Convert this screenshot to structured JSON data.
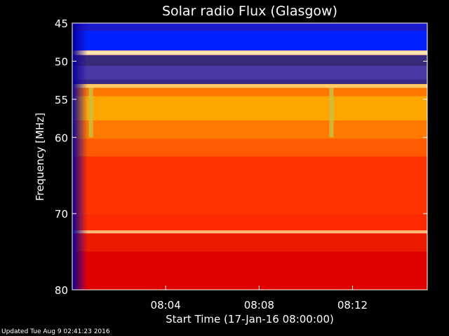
{
  "chart_data": {
    "type": "heatmap",
    "title": "Solar radio Flux (Glasgow)",
    "xlabel": "Start Time (17-Jan-16 08:00:00)",
    "ylabel": "Frequency [MHz]",
    "x_unit": "minutes after 08:00:00",
    "xlim": [
      0,
      15.2
    ],
    "ylim": [
      45,
      80
    ],
    "y_ticks": [
      {
        "value": 45,
        "label": "45"
      },
      {
        "value": 50,
        "label": "50"
      },
      {
        "value": 55,
        "label": "55"
      },
      {
        "value": 60,
        "label": "60"
      },
      {
        "value": 70,
        "label": "70"
      },
      {
        "value": 80,
        "label": "80"
      }
    ],
    "x_ticks": [
      {
        "value": 4,
        "label": "08:04"
      },
      {
        "value": 8,
        "label": "08:08"
      },
      {
        "value": 12,
        "label": "08:12"
      }
    ],
    "colormap": [
      "#0000ff",
      "#5a3aa8",
      "#ff0000",
      "#ffa500",
      "#ffffff"
    ],
    "bands": [
      {
        "from": 45.0,
        "to": 46.0,
        "color": "#1a1acc"
      },
      {
        "from": 46.0,
        "to": 48.6,
        "color": "#0022ff"
      },
      {
        "from": 48.6,
        "to": 49.2,
        "color": "#ffe2b0"
      },
      {
        "from": 49.2,
        "to": 50.6,
        "color": "#3a2a7a"
      },
      {
        "from": 50.6,
        "to": 52.4,
        "color": "#4a3aa6"
      },
      {
        "from": 52.4,
        "to": 53.0,
        "color": "#3a2a88"
      },
      {
        "from": 53.0,
        "to": 53.5,
        "color": "#ffcc66"
      },
      {
        "from": 53.5,
        "to": 54.6,
        "color": "#ff7700"
      },
      {
        "from": 54.6,
        "to": 57.8,
        "color": "#ffa500"
      },
      {
        "from": 57.8,
        "to": 60.2,
        "color": "#ff7a00"
      },
      {
        "from": 60.2,
        "to": 62.5,
        "color": "#ff5a00"
      },
      {
        "from": 62.5,
        "to": 70.2,
        "color": "#ff3300"
      },
      {
        "from": 70.2,
        "to": 72.2,
        "color": "#ff2a00"
      },
      {
        "from": 72.2,
        "to": 72.6,
        "color": "#ffbb77"
      },
      {
        "from": 72.6,
        "to": 75.0,
        "color": "#ee1a00"
      },
      {
        "from": 75.0,
        "to": 80.0,
        "color": "#e00000"
      }
    ],
    "vertical_features": [
      {
        "x": 0.8,
        "from": 53.5,
        "to": 60.0,
        "color": "#c8c040"
      },
      {
        "x": 11.1,
        "from": 53.5,
        "to": 60.0,
        "color": "#c8c040"
      }
    ]
  },
  "footer": {
    "updated": "Updated Tue Aug  9 02:41:23 2016"
  }
}
